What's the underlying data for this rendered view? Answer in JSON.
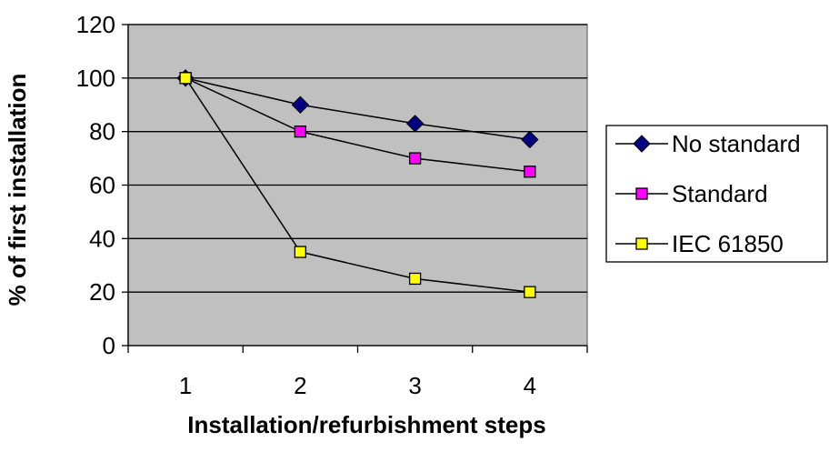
{
  "chart_data": {
    "type": "line",
    "title": "",
    "xlabel": "Installation/refurbishment steps",
    "ylabel": "% of first installation",
    "categories": [
      "1",
      "2",
      "3",
      "4"
    ],
    "ylim": [
      0,
      120
    ],
    "yticks": [
      "0",
      "20",
      "40",
      "60",
      "80",
      "100",
      "120"
    ],
    "grid": true,
    "plot_background": "#c0c0c0",
    "legend_position": "right",
    "series": [
      {
        "name": "No standard",
        "values": [
          100,
          90,
          83,
          77
        ],
        "marker": "diamond",
        "color": "#000080"
      },
      {
        "name": "Standard",
        "values": [
          100,
          80,
          70,
          65
        ],
        "marker": "square",
        "color": "#ff00ff"
      },
      {
        "name": "IEC 61850",
        "values": [
          100,
          35,
          25,
          20
        ],
        "marker": "square",
        "color": "#ffff00"
      }
    ]
  }
}
